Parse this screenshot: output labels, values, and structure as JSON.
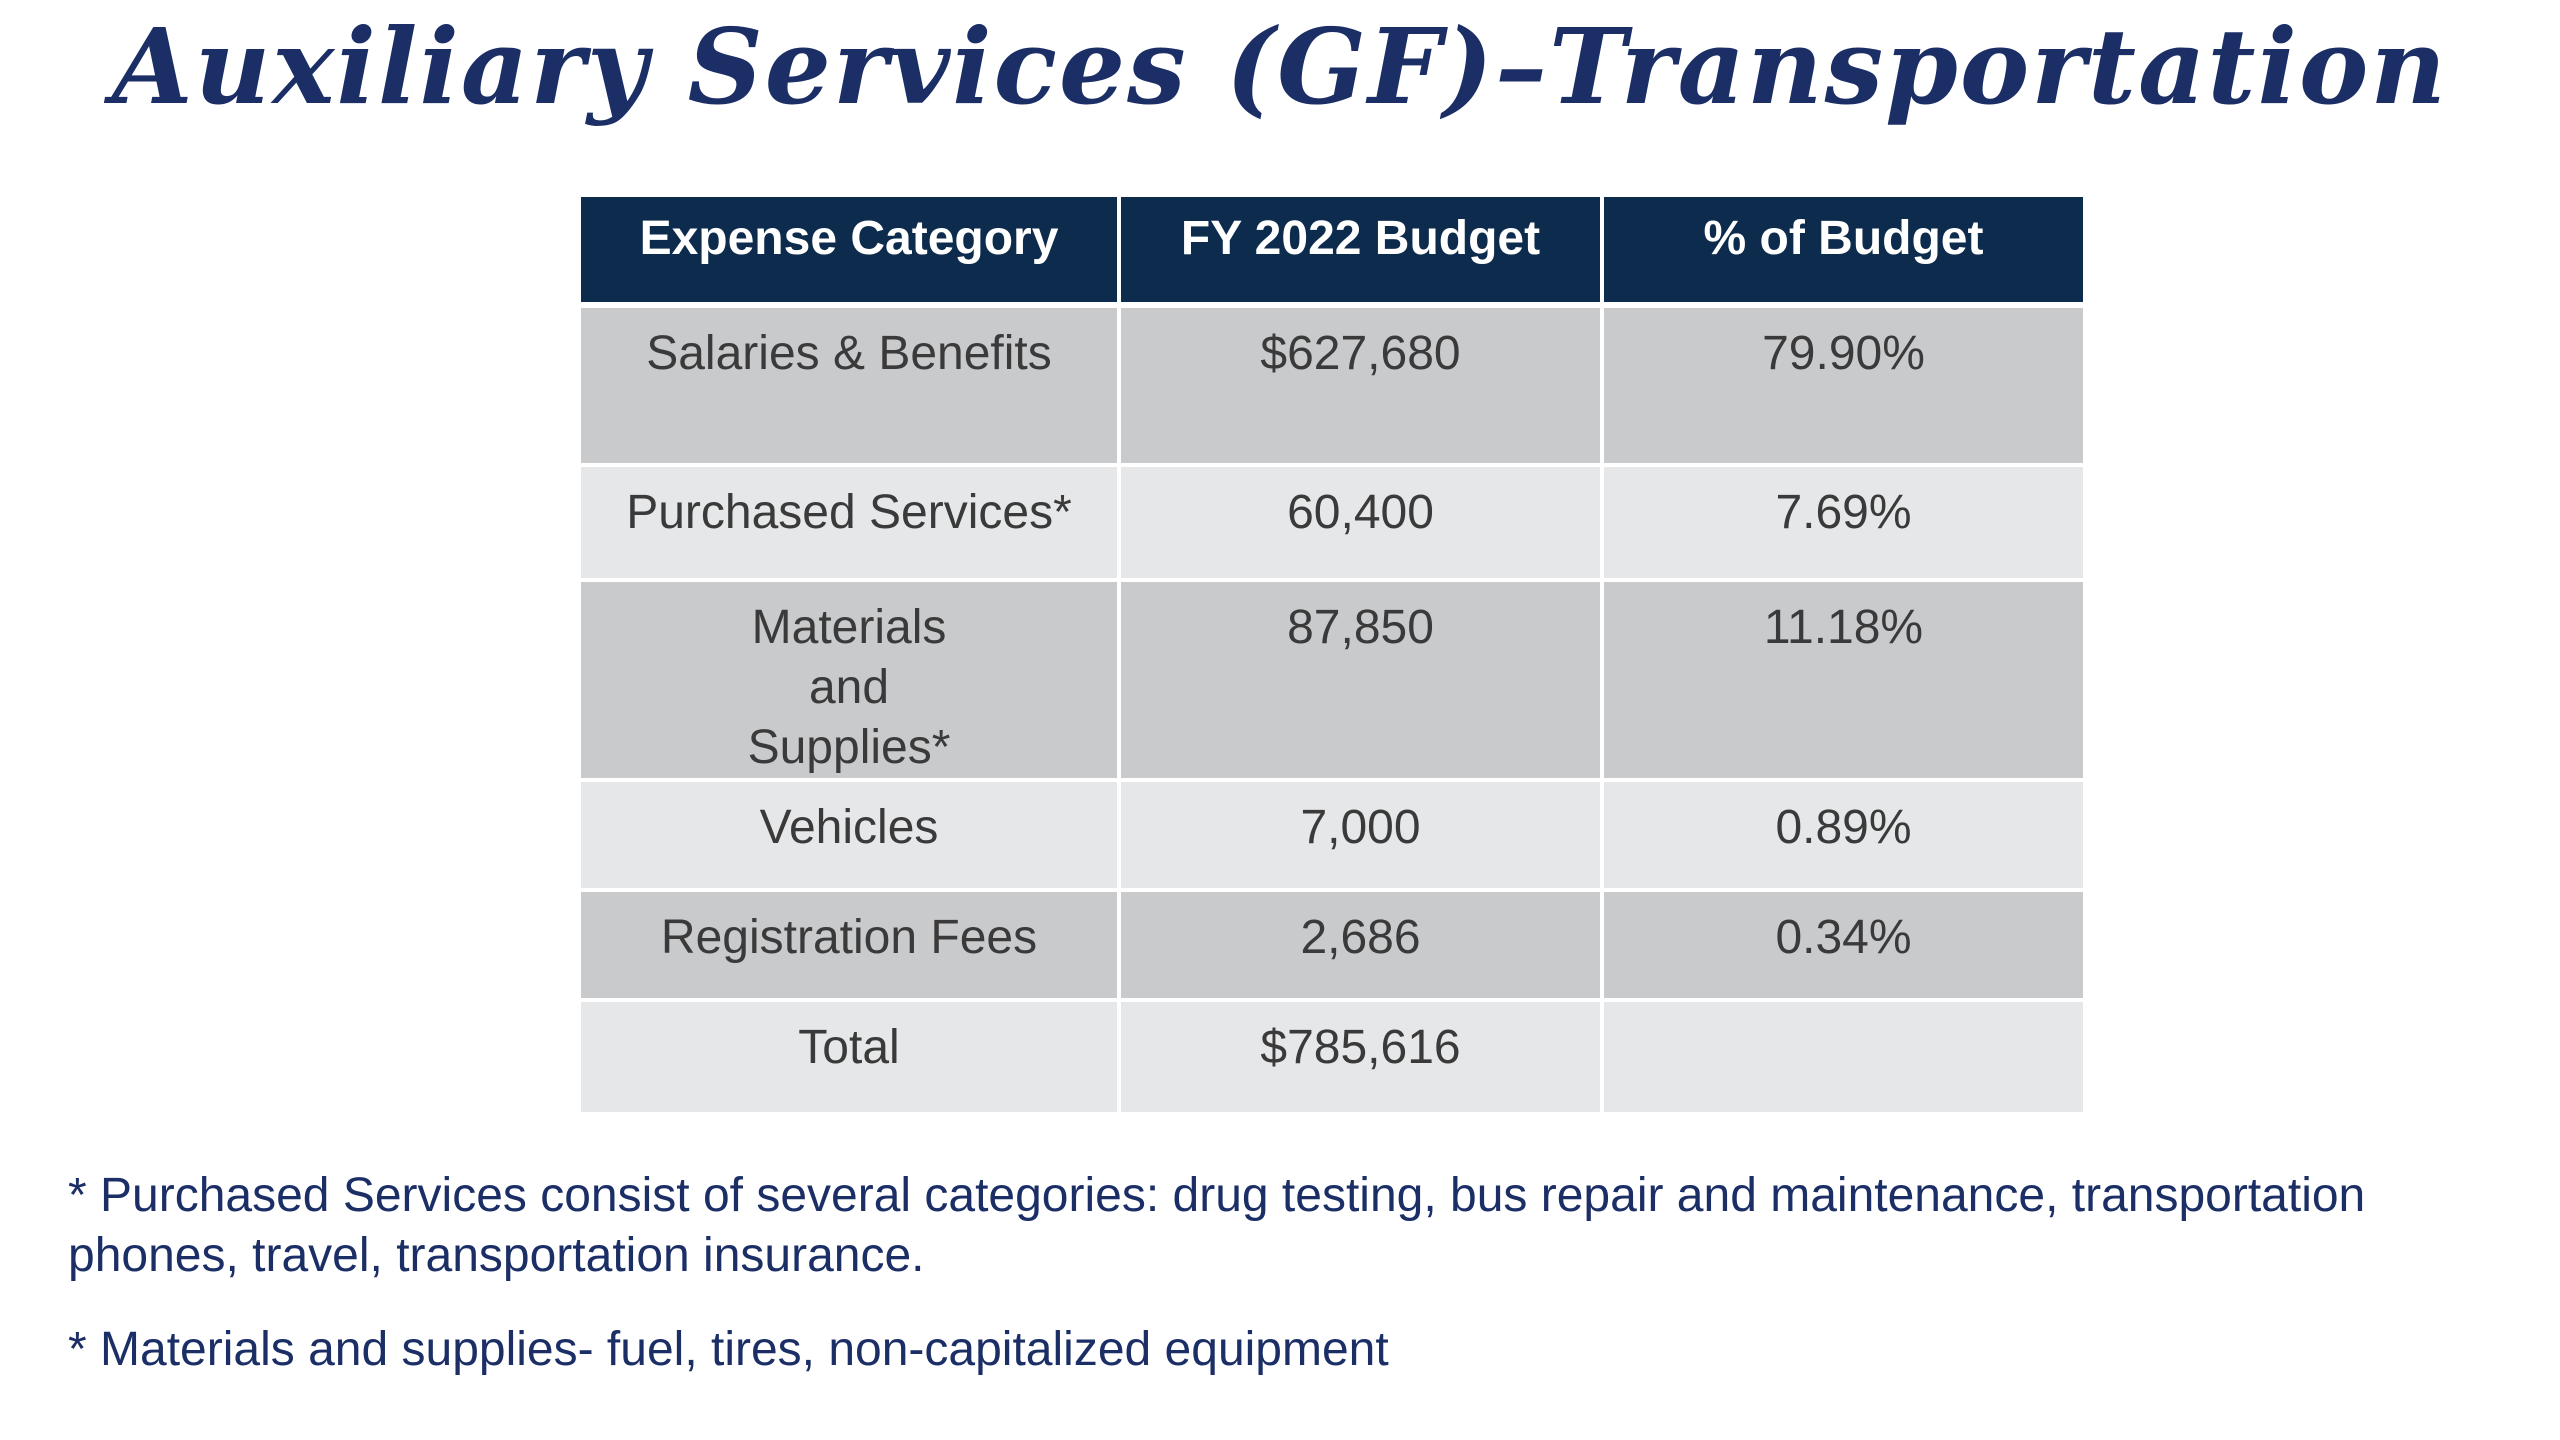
{
  "title": "Auxiliary Services (GF)–Transportation",
  "colors": {
    "title": "#1b2f66",
    "header_background": "#0d2b4c",
    "row_dark": "#c9cacc",
    "row_light": "#e6e7e8",
    "notes": "#1b2f66"
  },
  "table": {
    "headers": [
      "Expense Category",
      "FY 2022 Budget",
      "% of Budget"
    ],
    "rows": [
      {
        "category": "Salaries & Benefits",
        "budget": "$627,680",
        "percent": "79.90%"
      },
      {
        "category": "Purchased Services*",
        "budget": "60,400",
        "percent": "7.69%"
      },
      {
        "category": "Materials and Supplies*",
        "budget": "87,850",
        "percent": "11.18%"
      },
      {
        "category": "Vehicles",
        "budget": "7,000",
        "percent": "0.89%"
      },
      {
        "category": "Registration Fees",
        "budget": "2,686",
        "percent": "0.34%"
      },
      {
        "category": "Total",
        "budget": "$785,616",
        "percent": ""
      }
    ]
  },
  "notes": [
    "* Purchased Services consist of several categories: drug testing, bus repair and maintenance, transportation phones, travel, transportation insurance.",
    "* Materials and supplies- fuel, tires, non-capitalized equipment"
  ]
}
